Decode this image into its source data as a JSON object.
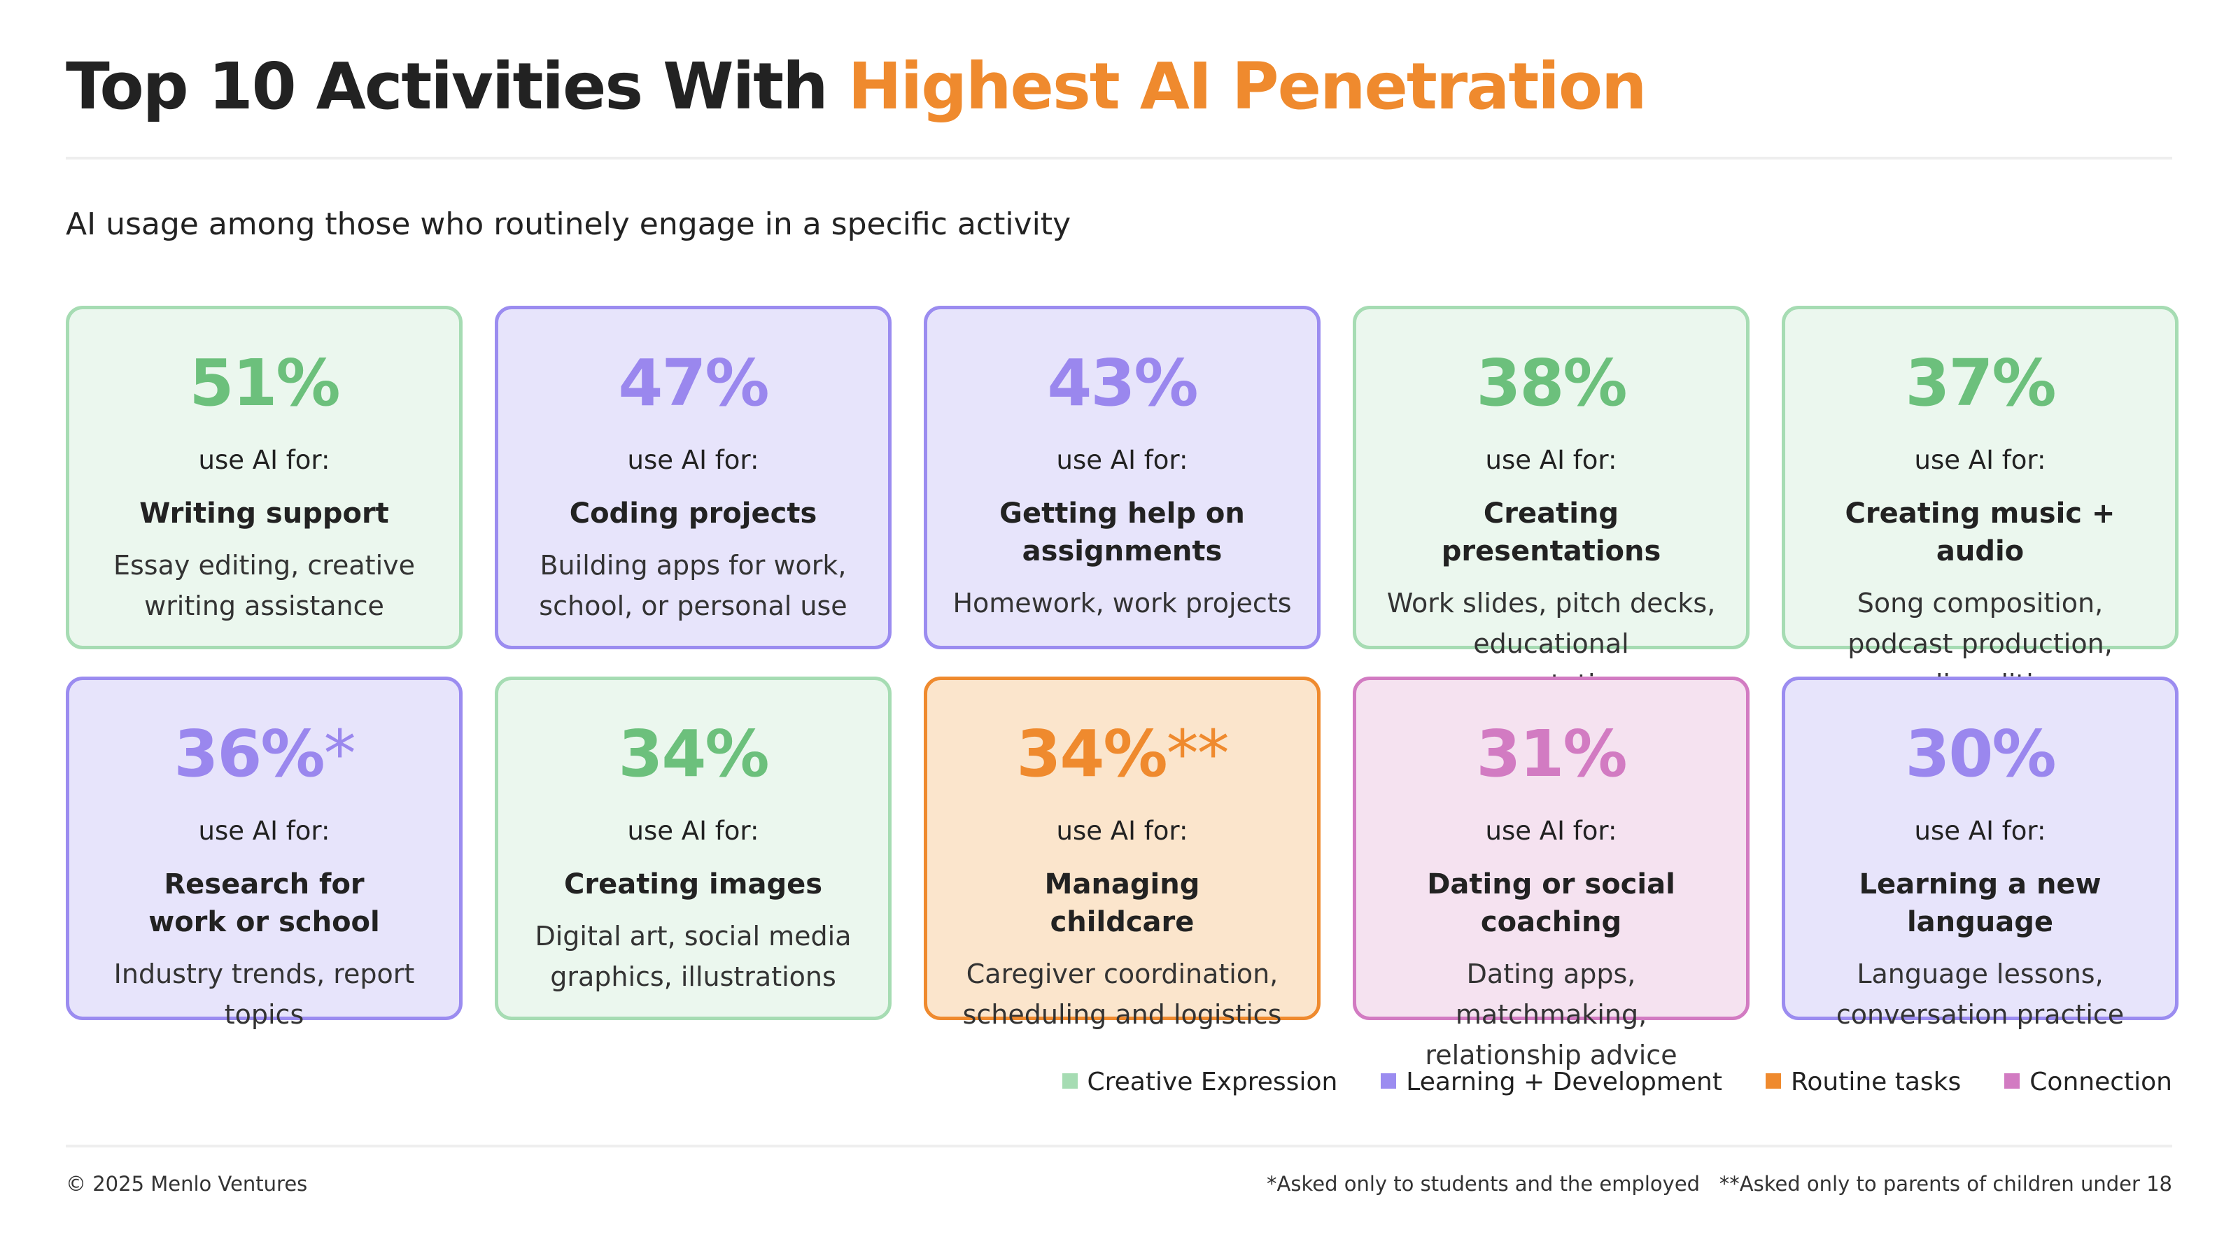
{
  "header": {
    "title_start": "Top 10 Activities With",
    "title_highlight": "Highest AI Penetration",
    "subtitle": "AI usage among those who routinely engage in a specific activity"
  },
  "cards": [
    {
      "percent": "51%",
      "lead": "use AI for:",
      "title": "Writing support",
      "description": "Essay editing, creative writing assistance",
      "color": "#6cc07c",
      "border": "#a6dcb3",
      "background": "#ebf7ee"
    },
    {
      "percent": "47%",
      "lead": "use AI for:",
      "title": "Coding projects",
      "description": "Building apps for work, school, or personal use",
      "color": "#9a87ee",
      "border": "#9b8cf0",
      "background": "#e7e4fb"
    },
    {
      "percent": "43%",
      "lead": "use AI for:",
      "title": "Getting help on assignments",
      "description": "Homework, work projects",
      "color": "#9a87ee",
      "border": "#9b8cf0",
      "background": "#e7e4fb"
    },
    {
      "percent": "38%",
      "lead": "use AI for:",
      "title": "Creating presentations",
      "description": "Work slides, pitch decks, educational presentations",
      "color": "#6cc07c",
      "border": "#a6dcb3",
      "background": "#ebf7ee"
    },
    {
      "percent": "37%",
      "lead": "use AI for:",
      "title": "Creating music + audio",
      "description": "Song composition, podcast production, audio editing",
      "color": "#6cc07c",
      "border": "#a6dcb3",
      "background": "#ebf7ee"
    },
    {
      "percent": "36%",
      "note": "*",
      "lead": "use AI for:",
      "title": "Research for work or school",
      "description": "Industry trends, report topics",
      "color": "#9a87ee",
      "border": "#9b8cf0",
      "background": "#e7e4fb"
    },
    {
      "percent": "34%",
      "lead": "use AI for:",
      "title": "Creating images",
      "description": "Digital art, social media graphics, illustrations",
      "color": "#6cc07c",
      "border": "#a6dcb3",
      "background": "#ebf7ee"
    },
    {
      "percent": "34%",
      "note": "**",
      "lead": "use AI for:",
      "title": "Managing childcare",
      "description": "Caregiver coordination, scheduling and logistics",
      "color": "#ef8a2e",
      "border": "#ef8a2e",
      "background": "#fbe5cc"
    },
    {
      "percent": "31%",
      "lead": "use AI for:",
      "title": "Dating or social coaching",
      "description": "Dating apps, matchmaking, relationship advice",
      "color": "#d27bc2",
      "border": "#d27bc2",
      "background": "#f5e2f0"
    },
    {
      "percent": "30%",
      "lead": "use AI for:",
      "title": "Learning a new language",
      "description": "Language lessons, conversation practice",
      "color": "#9a87ee",
      "border": "#9b8cf0",
      "background": "#e7e4fb"
    }
  ],
  "legend": [
    {
      "name": "Creative Expression",
      "color": "#a6dcb3"
    },
    {
      "name": "Learning + Development",
      "color": "#9b8cf0"
    },
    {
      "name": "Routine tasks",
      "color": "#ef8a2e"
    },
    {
      "name": "Connection",
      "color": "#d27bc2"
    }
  ],
  "footer": {
    "copyright": "© 2025 Menlo Ventures",
    "note1": "*Asked only to students and the employed",
    "note2": "**Asked only to parents of children under 18"
  }
}
